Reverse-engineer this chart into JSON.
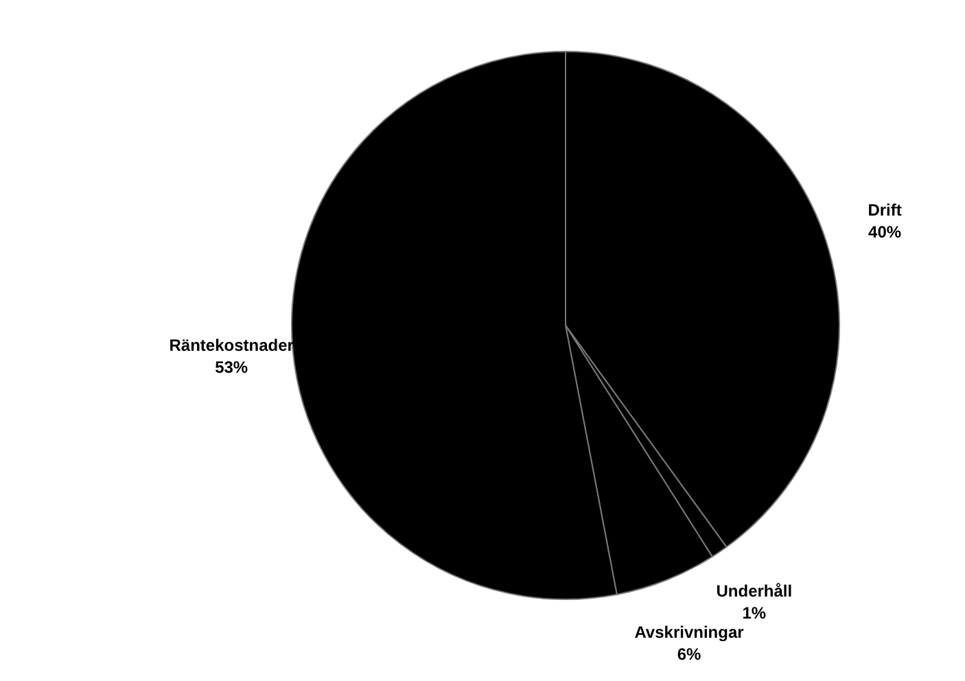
{
  "chart_data": {
    "type": "pie",
    "categories": [
      "Drift",
      "Underhåll",
      "Avskrivningar",
      "Räntekostnader"
    ],
    "values": [
      40,
      1,
      6,
      53
    ],
    "colors": [
      "#000000",
      "#000000",
      "#000000",
      "#000000"
    ],
    "value_labels": [
      "40%",
      "1%",
      "6%",
      "53%"
    ],
    "legend": false
  }
}
